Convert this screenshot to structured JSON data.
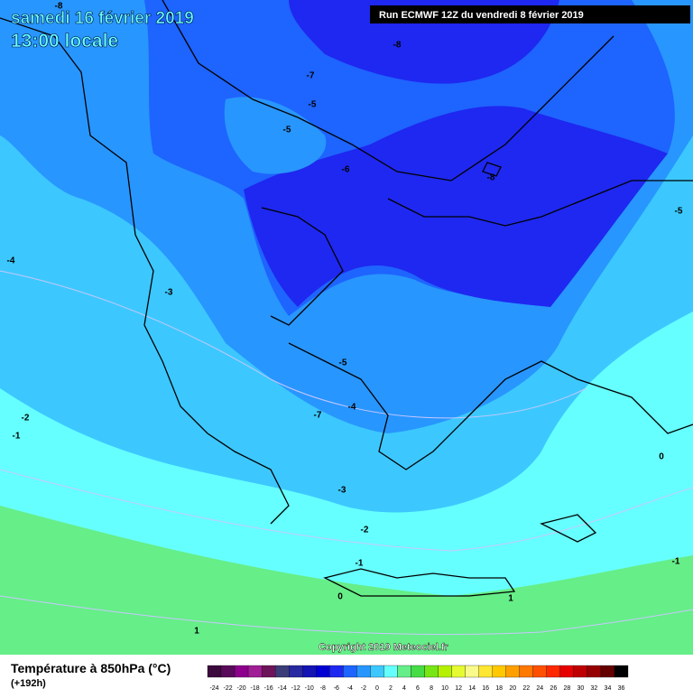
{
  "header": {
    "date": "samedi 16 février 2019",
    "time": "13:00 locale",
    "run": "Run ECMWF 12Z du vendredi 8 février 2019"
  },
  "contour_labels": [
    "-8",
    "-8",
    "-7",
    "-5",
    "-5",
    "-6",
    "-8",
    "-5",
    "-4",
    "-3",
    "-2",
    "-1",
    "-5",
    "-4",
    "-7",
    "-3",
    "-2",
    "-1",
    "0",
    "1",
    "0",
    "-1",
    "1"
  ],
  "copyright": "Copyright 2019 Meteociel.fr",
  "legend": {
    "title": "Température à 850hPa (°C)",
    "lead": "(+192h)",
    "items": [
      {
        "label": "-24",
        "color": "#3c0a3c"
      },
      {
        "label": "-22",
        "color": "#5a0a5a"
      },
      {
        "label": "-20",
        "color": "#8c008c"
      },
      {
        "label": "-18",
        "color": "#a01e96"
      },
      {
        "label": "-16",
        "color": "#6e145a"
      },
      {
        "label": "-14",
        "color": "#3c3c78"
      },
      {
        "label": "-12",
        "color": "#2828a0"
      },
      {
        "label": "-10",
        "color": "#1414b4"
      },
      {
        "label": "-8",
        "color": "#0000d2"
      },
      {
        "label": "-6",
        "color": "#1e28f0"
      },
      {
        "label": "-4",
        "color": "#1e64ff"
      },
      {
        "label": "-2",
        "color": "#2896ff"
      },
      {
        "label": "0",
        "color": "#3cc8ff"
      },
      {
        "label": "2",
        "color": "#66ffff"
      },
      {
        "label": "4",
        "color": "#66ee88"
      },
      {
        "label": "6",
        "color": "#46dc46"
      },
      {
        "label": "8",
        "color": "#78e614"
      },
      {
        "label": "10",
        "color": "#b4f000"
      },
      {
        "label": "12",
        "color": "#e6fa32"
      },
      {
        "label": "14",
        "color": "#fafa8c"
      },
      {
        "label": "16",
        "color": "#ffe632"
      },
      {
        "label": "18",
        "color": "#ffc800"
      },
      {
        "label": "20",
        "color": "#ffa000"
      },
      {
        "label": "22",
        "color": "#ff7800"
      },
      {
        "label": "24",
        "color": "#ff5000"
      },
      {
        "label": "26",
        "color": "#ff2800"
      },
      {
        "label": "28",
        "color": "#e60000"
      },
      {
        "label": "30",
        "color": "#be0000"
      },
      {
        "label": "32",
        "color": "#960000"
      },
      {
        "label": "34",
        "color": "#640000"
      },
      {
        "label": "36",
        "color": "#000000"
      }
    ]
  }
}
